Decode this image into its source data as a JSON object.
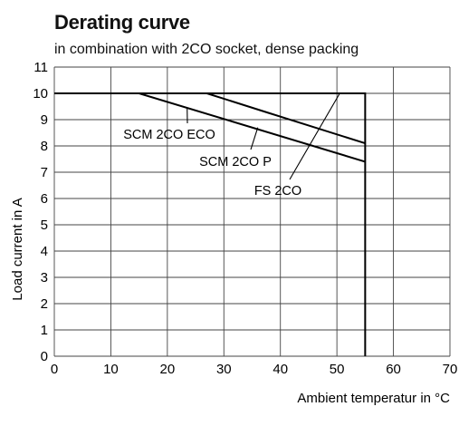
{
  "header": {
    "title": "Derating curve",
    "subtitle": "in combination with 2CO socket, dense packing"
  },
  "chart_data": {
    "type": "line",
    "xlabel": "Ambient temperatur in °C",
    "ylabel": "Load  current in A",
    "xlim": [
      0,
      70
    ],
    "ylim": [
      0,
      11
    ],
    "xticks": [
      0,
      10,
      20,
      30,
      40,
      50,
      60,
      70
    ],
    "yticks": [
      0,
      1,
      2,
      3,
      4,
      5,
      6,
      7,
      8,
      9,
      10,
      11
    ],
    "grid": true,
    "series": [
      {
        "name": "SCM 2CO ECO",
        "x": [
          0,
          15,
          55
        ],
        "y": [
          10,
          10,
          7.4
        ]
      },
      {
        "name": "SCM 2CO P",
        "x": [
          0,
          27,
          38,
          55
        ],
        "y": [
          10,
          10,
          9.25,
          8.1
        ]
      },
      {
        "name": "FS 2CO",
        "x": [
          0,
          55,
          55
        ],
        "y": [
          10,
          10,
          0
        ]
      }
    ],
    "annotations": [
      {
        "text": "SCM 2CO ECO",
        "target": [
          23.5,
          9.45
        ]
      },
      {
        "text": "SCM 2CO P",
        "target": [
          36,
          8.7
        ]
      },
      {
        "text": "FS 2CO",
        "target": [
          50.5,
          10.0
        ]
      }
    ]
  }
}
